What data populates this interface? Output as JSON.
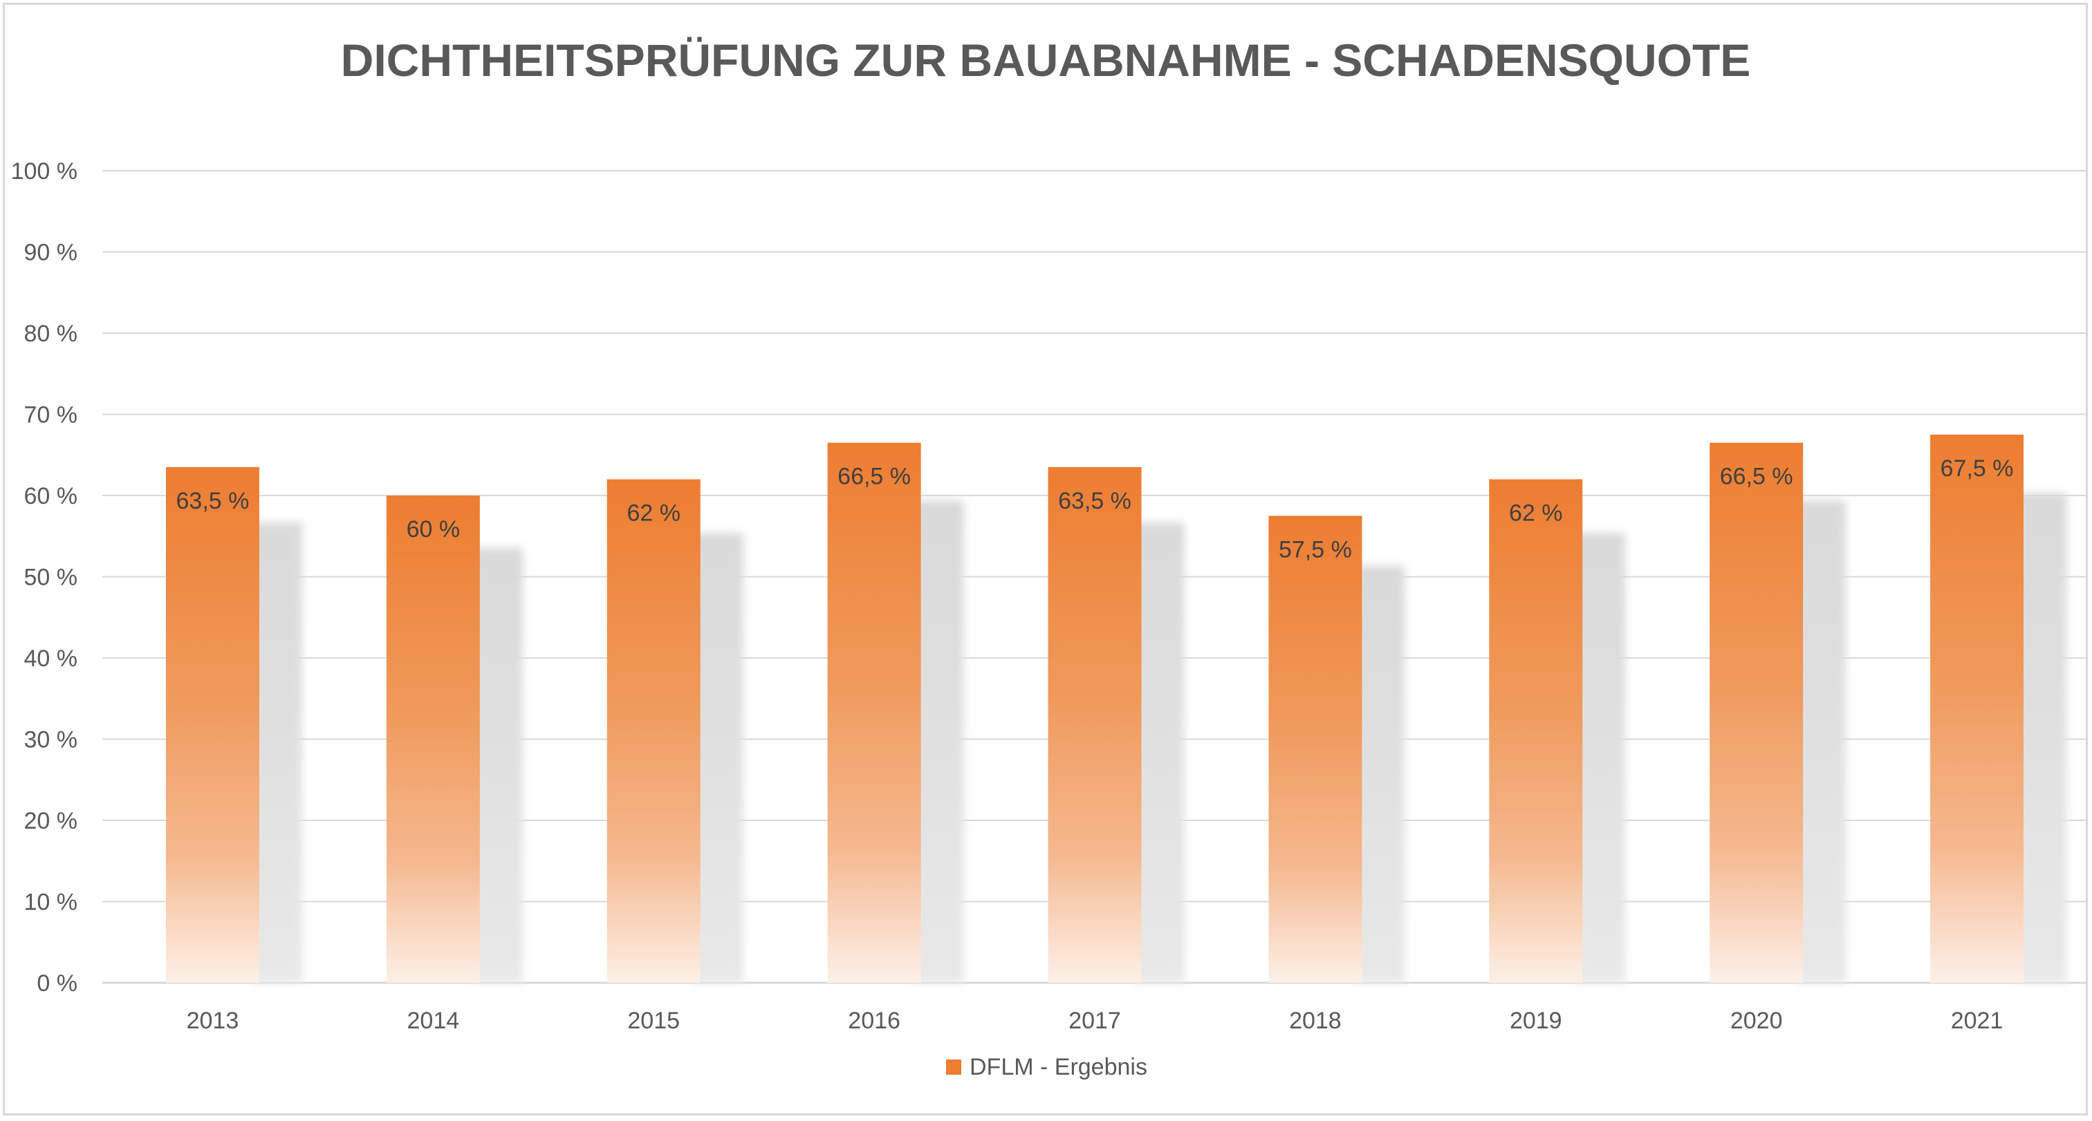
{
  "chart_data": {
    "type": "bar",
    "title": "DICHTHEITSPRÜFUNG ZUR BAUABNAHME - SCHADENSQUOTE",
    "categories": [
      "2013",
      "2014",
      "2015",
      "2016",
      "2017",
      "2018",
      "2019",
      "2020",
      "2021"
    ],
    "series": [
      {
        "name": "DFLM - Ergebnis",
        "values": [
          63.5,
          60,
          62,
          66.5,
          63.5,
          57.5,
          62,
          66.5,
          67.5
        ],
        "labels": [
          "63,5 %",
          "60 %",
          "62 %",
          "66,5 %",
          "63,5 %",
          "57,5 %",
          "62 %",
          "66,5 %",
          "67,5 %"
        ],
        "color": "#ed7d31"
      }
    ],
    "ylim": [
      0,
      100
    ],
    "yticks": [
      0,
      10,
      20,
      30,
      40,
      50,
      60,
      70,
      80,
      90,
      100
    ],
    "ytick_labels": [
      "0 %",
      "10 %",
      "20 %",
      "30 %",
      "40 %",
      "50 %",
      "60 %",
      "70 %",
      "80 %",
      "90 %",
      "100 %"
    ],
    "xlabel": "",
    "ylabel": "",
    "grid": true,
    "legend": "bottom",
    "shadow_color": "#d9d9d9",
    "gridline_color": "#d9d9d9"
  }
}
